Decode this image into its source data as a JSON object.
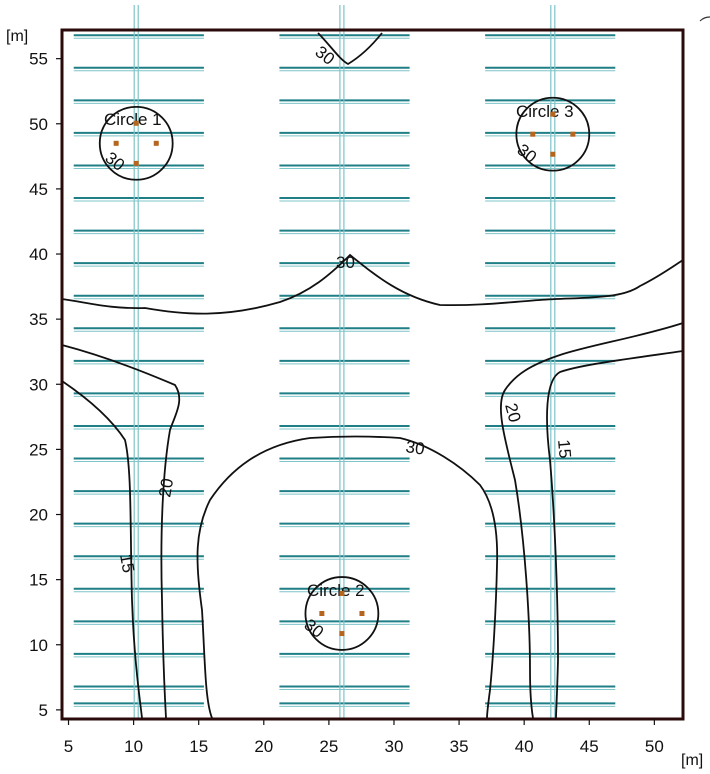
{
  "axes": {
    "x_unit": "[m]",
    "y_unit": "[m]",
    "x_ticks": [
      5,
      10,
      15,
      20,
      25,
      30,
      35,
      40,
      45,
      50
    ],
    "y_ticks": [
      5,
      10,
      15,
      20,
      25,
      30,
      35,
      40,
      45,
      50,
      55
    ],
    "x_range": [
      4.5,
      52.2
    ],
    "y_range": [
      4.3,
      57.2
    ]
  },
  "luminaire_columns": [
    {
      "x": 10.2,
      "row_from": 9.5,
      "row_to": 5.5
    },
    {
      "x": 26.0,
      "row_from": 9.5,
      "row_to": 5.5
    },
    {
      "x": 42.2,
      "row_from": 9.5,
      "row_to": 5.5
    }
  ],
  "luminaire_rows_y": [
    5.5,
    6.8,
    9.3,
    11.8,
    14.3,
    16.8,
    19.3,
    21.8,
    24.3,
    26.8,
    29.3,
    31.8,
    34.3,
    36.8,
    39.3,
    41.8,
    44.3,
    46.8,
    49.3,
    51.8,
    54.3,
    56.8
  ],
  "calculation_objects": [
    {
      "label": "Circle 1",
      "center": [
        10.2,
        48.5
      ],
      "radius": 2.8,
      "contour_label": "30"
    },
    {
      "label": "Circle 2",
      "center": [
        26.0,
        12.4
      ],
      "radius": 2.8,
      "contour_label": "30"
    },
    {
      "label": "Circle 3",
      "center": [
        42.2,
        49.2
      ],
      "radius": 2.8,
      "contour_label": "30"
    }
  ],
  "contour_labels": [
    "30",
    "30",
    "30",
    "20",
    "15",
    "20",
    "15"
  ],
  "colors": {
    "frame": "#2a0a0a",
    "luminaire": "#1f7f86",
    "luminaire_light": "#7fc4c8",
    "contour": "#111111",
    "marker": "#b5651d"
  }
}
